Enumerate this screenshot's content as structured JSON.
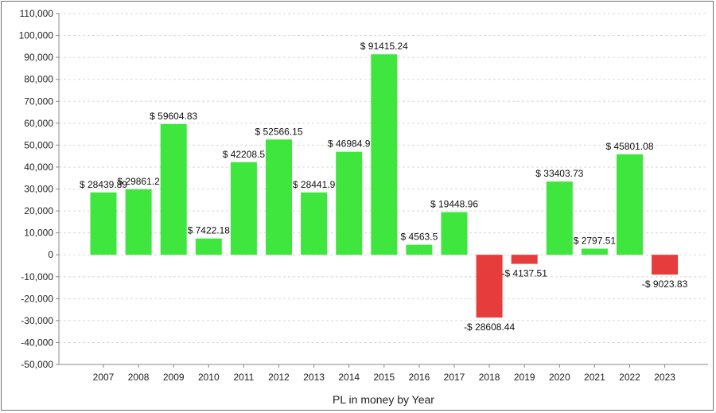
{
  "chart_data": {
    "type": "bar",
    "categories": [
      "2007",
      "2008",
      "2009",
      "2010",
      "2011",
      "2012",
      "2013",
      "2014",
      "2015",
      "2016",
      "2017",
      "2018",
      "2019",
      "2020",
      "2021",
      "2022",
      "2023"
    ],
    "values": [
      28439.89,
      29861.2,
      59604.83,
      7422.18,
      42208.5,
      52566.15,
      28441.9,
      46984.9,
      91415.24,
      4563.5,
      19448.96,
      -28608.44,
      -4137.51,
      33403.73,
      2797.51,
      45801.08,
      -9023.83
    ],
    "data_labels": [
      "$ 28439.89",
      "$ 29861.2",
      "$ 59604.83",
      "$ 7422.18",
      "$ 42208.5",
      "$ 52566.15",
      "$ 28441.9",
      "$ 46984.9",
      "$ 91415.24",
      "$ 4563.5",
      "$ 19448.96",
      "-$ 28608.44",
      "-$ 4137.51",
      "$ 33403.73",
      "$ 2797.51",
      "$ 45801.08",
      "-$ 9023.83"
    ],
    "y_ticks": [
      "-50,000",
      "-40,000",
      "-30,000",
      "-20,000",
      "-10,000",
      "0",
      "10,000",
      "20,000",
      "30,000",
      "40,000",
      "50,000",
      "60,000",
      "70,000",
      "80,000",
      "90,000",
      "100,000",
      "110,000"
    ],
    "ylim": [
      -50000,
      110000
    ],
    "xlabel": "PL in money by Year",
    "ylabel": "",
    "title": "",
    "grid": true,
    "legend": "none",
    "colors": {
      "positive": "#3ee63e",
      "negative": "#e63c3c",
      "grid": "#d8d8d8",
      "axis": "#888888"
    }
  }
}
